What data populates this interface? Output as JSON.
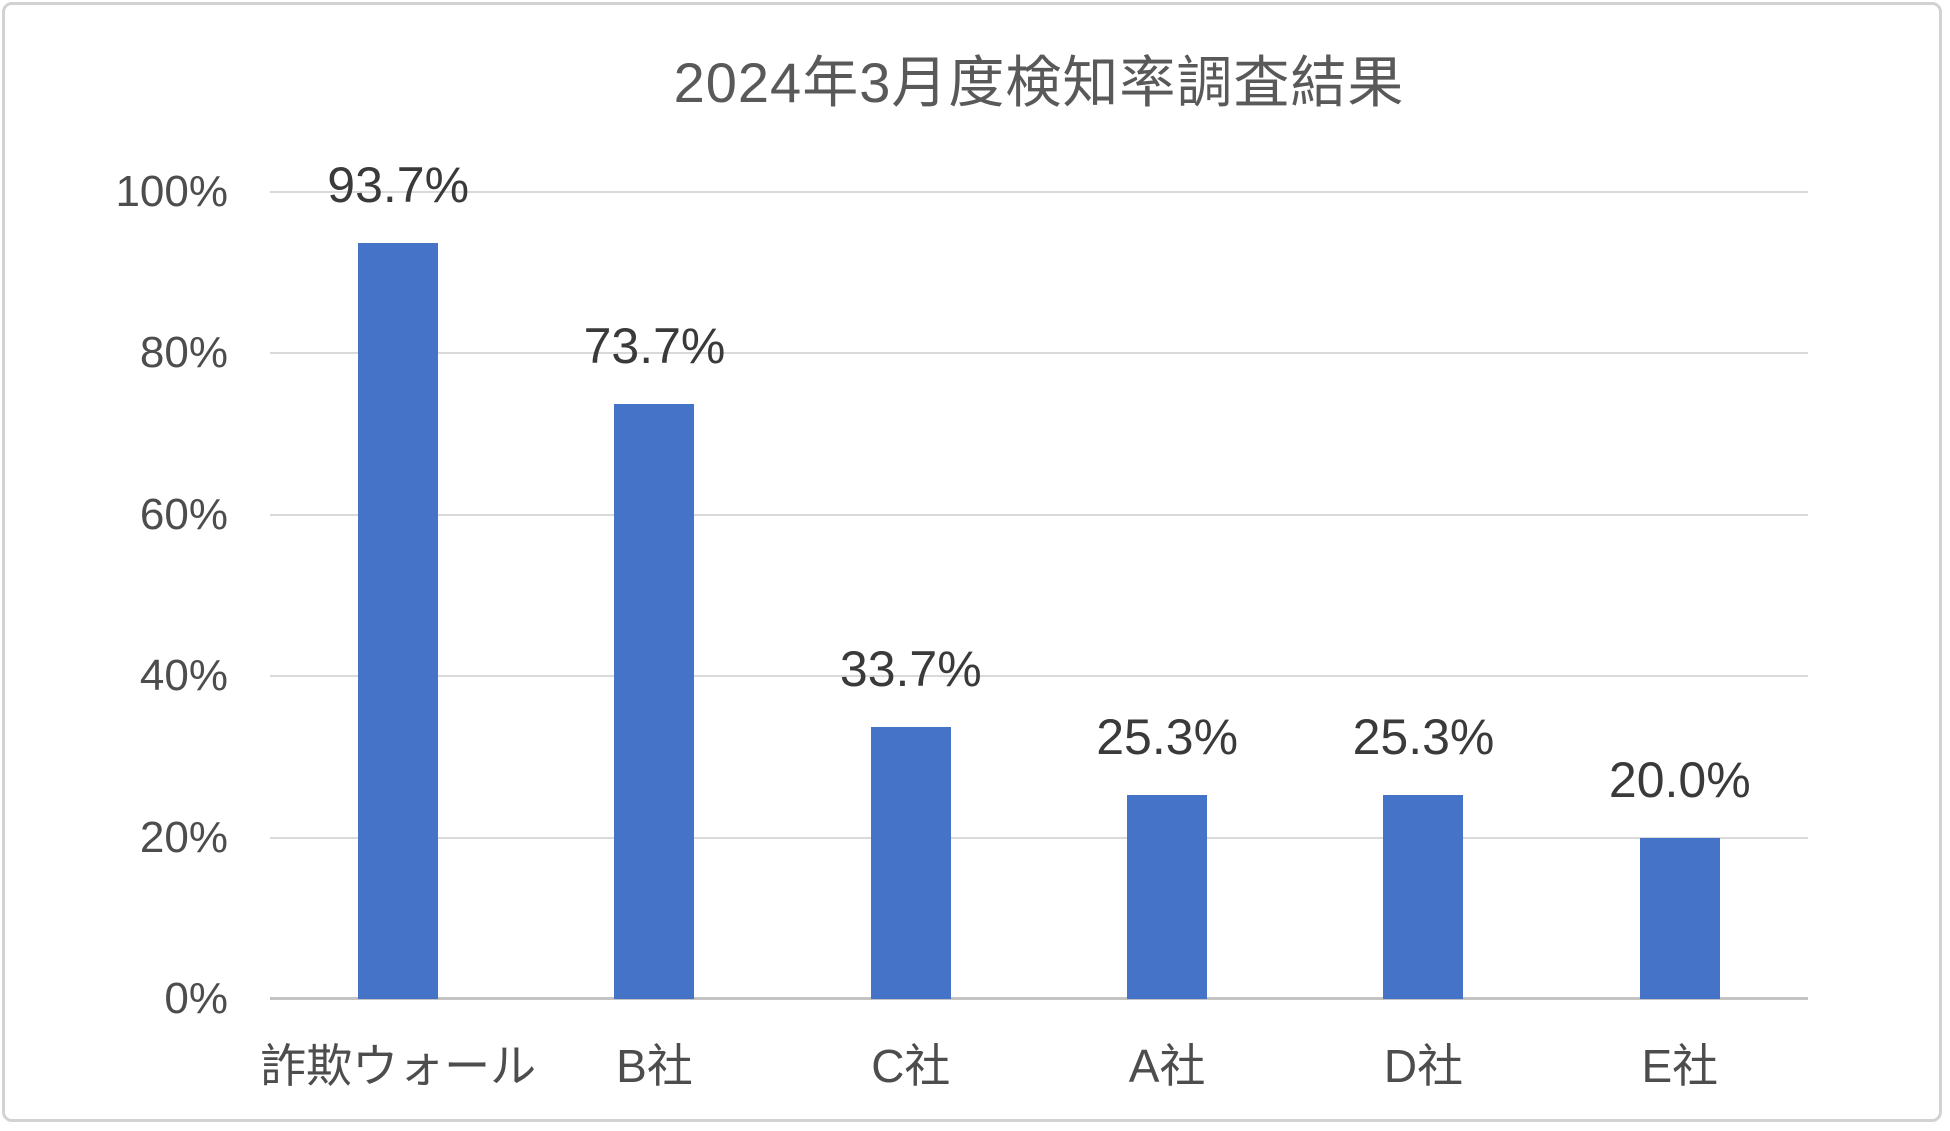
{
  "card": {
    "background": "#ffffff",
    "border_color": "#d2d2d2"
  },
  "chart_data": {
    "type": "bar",
    "title": "2024年3月度検知率調査結果",
    "categories": [
      "詐欺ウォール",
      "B社",
      "C社",
      "A社",
      "D社",
      "E社"
    ],
    "values": [
      93.7,
      73.7,
      33.7,
      25.3,
      25.3,
      20.0
    ],
    "data_labels": [
      "93.7%",
      "73.7%",
      "33.7%",
      "25.3%",
      "25.3%",
      "20.0%"
    ],
    "y_ticks": [
      {
        "value": 0,
        "label": "0%"
      },
      {
        "value": 20,
        "label": "20%"
      },
      {
        "value": 40,
        "label": "40%"
      },
      {
        "value": 60,
        "label": "60%"
      },
      {
        "value": 80,
        "label": "80%"
      },
      {
        "value": 100,
        "label": "100%"
      }
    ],
    "ylim": [
      0,
      100
    ],
    "xlabel": "",
    "ylabel": "",
    "grid": true,
    "legend": "none",
    "colors": {
      "bar": "#4573C8",
      "gridline": "#d9d9d9",
      "axis_line": "#c3c3c3",
      "title_text": "#595959",
      "tick_text": "#4d4d4d",
      "data_label_text": "#3a3a3a"
    }
  }
}
